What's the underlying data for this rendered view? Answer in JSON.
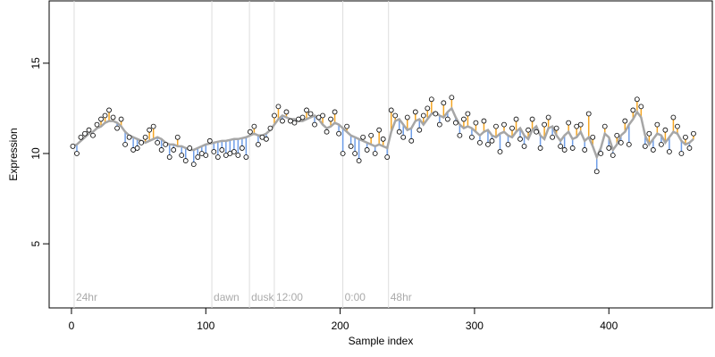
{
  "chart_data": {
    "type": "scatter",
    "xlabel": "Sample index",
    "ylabel": "Expression",
    "xlim": [
      -16.6,
      477
    ],
    "ylim": [
      1.45,
      18.45
    ],
    "xticks": [
      0,
      100,
      200,
      300,
      400
    ],
    "yticks": [
      5,
      10,
      15
    ],
    "colors": {
      "points": "#000000",
      "point_fill": "#ffffff",
      "above": "#f5a623",
      "below": "#6f9ee8",
      "fit": "#a6a6a6",
      "annotation_line": "#dddddd"
    },
    "x": [
      1,
      4,
      7,
      10,
      13,
      16,
      19,
      22,
      25,
      28,
      31,
      34,
      37,
      40,
      43,
      46,
      49,
      52,
      55,
      58,
      61,
      64,
      67,
      70,
      73,
      76,
      79,
      82,
      85,
      88,
      91,
      94,
      97,
      100,
      103,
      106,
      109,
      112,
      115,
      118,
      121,
      124,
      127,
      130,
      133,
      136,
      139,
      142,
      145,
      148,
      151,
      154,
      157,
      160,
      163,
      166,
      169,
      172,
      175,
      178,
      181,
      184,
      187,
      190,
      193,
      196,
      199,
      202,
      205,
      208,
      211,
      214,
      217,
      220,
      223,
      226,
      229,
      232,
      235,
      238,
      241,
      244,
      247,
      250,
      253,
      256,
      259,
      262,
      265,
      268,
      271,
      274,
      277,
      280,
      283,
      286,
      289,
      292,
      295,
      298,
      301,
      304,
      307,
      310,
      313,
      316,
      319,
      322,
      325,
      328,
      331,
      334,
      337,
      340,
      343,
      346,
      349,
      352,
      355,
      358,
      361,
      364,
      367,
      370,
      373,
      376,
      379,
      382,
      385,
      388,
      391,
      394,
      397,
      400,
      403,
      406,
      409,
      412,
      415,
      418,
      421,
      424,
      427,
      430,
      433,
      436,
      439,
      442,
      445,
      448,
      451,
      454,
      457,
      460,
      463
    ],
    "y": [
      10.4,
      10.0,
      10.9,
      11.1,
      11.3,
      11.0,
      11.6,
      11.9,
      12.1,
      12.4,
      12.0,
      11.4,
      11.9,
      10.5,
      10.9,
      10.2,
      10.3,
      10.6,
      10.9,
      11.3,
      11.5,
      10.6,
      10.2,
      10.5,
      9.8,
      10.2,
      10.9,
      9.9,
      9.6,
      10.3,
      9.4,
      9.8,
      10.0,
      9.9,
      10.7,
      10.1,
      9.8,
      10.2,
      9.9,
      10.0,
      10.1,
      9.9,
      10.3,
      9.8,
      11.2,
      11.5,
      10.5,
      10.9,
      10.8,
      11.4,
      12.1,
      12.6,
      11.8,
      12.3,
      11.8,
      11.7,
      11.9,
      12.0,
      12.4,
      12.2,
      11.6,
      12.0,
      12.1,
      11.2,
      11.9,
      12.3,
      11.1,
      10.0,
      11.5,
      10.4,
      10.0,
      9.6,
      10.9,
      10.2,
      11.0,
      10.0,
      11.3,
      10.8,
      9.8,
      12.4,
      12.1,
      11.2,
      10.9,
      12.0,
      10.7,
      12.3,
      11.3,
      12.1,
      12.5,
      13.0,
      12.2,
      11.6,
      12.8,
      11.9,
      13.1,
      11.7,
      11.0,
      11.9,
      12.2,
      10.9,
      11.7,
      10.6,
      11.8,
      10.5,
      10.7,
      11.5,
      10.1,
      11.6,
      10.5,
      11.4,
      11.9,
      10.8,
      10.4,
      11.3,
      11.9,
      11.2,
      10.3,
      11.6,
      12.0,
      10.9,
      11.4,
      10.4,
      10.2,
      11.7,
      10.3,
      11.5,
      11.6,
      10.2,
      12.2,
      10.9,
      9.0,
      10.0,
      11.5,
      10.3,
      9.9,
      11.0,
      10.6,
      11.8,
      10.5,
      12.4,
      13.0,
      12.6,
      10.4,
      11.1,
      10.2,
      11.6,
      10.5,
      11.3,
      10.1,
      12.0,
      11.5,
      10.0,
      10.9,
      10.3,
      11.1
    ],
    "fit": [
      10.4,
      10.5,
      10.7,
      10.9,
      11.1,
      11.2,
      11.4,
      11.5,
      11.7,
      11.8,
      11.8,
      11.7,
      11.5,
      11.2,
      11.0,
      10.9,
      10.8,
      10.7,
      10.6,
      10.7,
      10.8,
      10.9,
      10.8,
      10.6,
      10.5,
      10.5,
      10.4,
      10.4,
      10.3,
      10.2,
      10.2,
      10.3,
      10.4,
      10.5,
      10.55,
      10.6,
      10.65,
      10.7,
      10.7,
      10.75,
      10.8,
      10.8,
      10.85,
      10.9,
      11.0,
      11.1,
      11.0,
      11.0,
      11.1,
      11.3,
      11.6,
      11.9,
      12.1,
      12.0,
      11.9,
      11.9,
      11.8,
      11.8,
      11.9,
      12.0,
      12.1,
      11.9,
      11.6,
      11.4,
      11.5,
      11.7,
      11.6,
      11.4,
      11.2,
      11.0,
      10.9,
      10.8,
      10.7,
      10.6,
      10.5,
      10.4,
      10.5,
      10.4,
      10.3,
      11.2,
      11.8,
      11.9,
      11.6,
      11.3,
      11.4,
      11.8,
      11.9,
      11.6,
      11.9,
      12.2,
      12.3,
      12.1,
      12.0,
      12.3,
      12.5,
      12.0,
      11.6,
      11.4,
      11.5,
      11.4,
      11.2,
      11.0,
      11.2,
      11.3,
      11.0,
      10.9,
      11.1,
      11.2,
      11.0,
      10.9,
      11.2,
      11.4,
      11.0,
      10.8,
      11.3,
      11.5,
      11.0,
      10.8,
      11.4,
      11.5,
      11.0,
      10.7,
      11.0,
      11.2,
      10.8,
      10.9,
      11.2,
      10.7,
      10.9,
      10.4,
      9.8,
      10.3,
      11.1,
      10.9,
      10.2,
      10.5,
      11.0,
      11.2,
      11.6,
      11.9,
      12.3,
      12.0,
      11.0,
      10.5,
      10.8,
      11.1,
      11.0,
      10.6,
      10.9,
      11.2,
      11.1,
      10.7,
      10.5,
      10.6,
      10.8
    ],
    "annotations": [
      {
        "x": 2,
        "y": 2.0,
        "label": "24hr"
      },
      {
        "x": 104.5,
        "y": 2.0,
        "label": "dawn"
      },
      {
        "x": 132.5,
        "y": 2.0,
        "label": "dusk"
      },
      {
        "x": 151,
        "y": 2.0,
        "label": "12:00"
      },
      {
        "x": 202,
        "y": 2.0,
        "label": "0:00"
      },
      {
        "x": 236,
        "y": 2.0,
        "label": "48hr"
      }
    ]
  }
}
